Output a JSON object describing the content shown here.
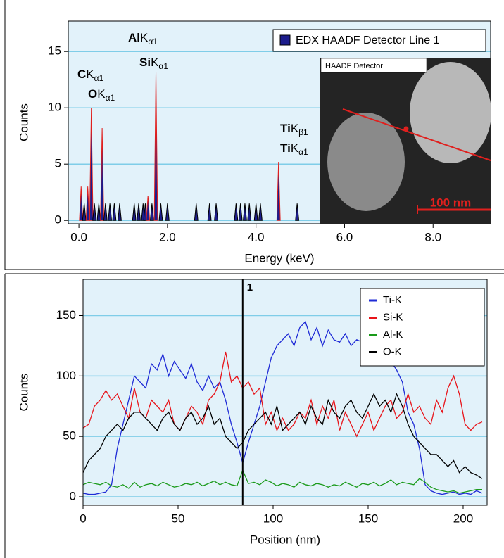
{
  "chart_data": [
    {
      "type": "spectrum",
      "x_label": "Energy (keV)",
      "y_label": "Counts",
      "xlim": [
        -0.24,
        9.3
      ],
      "ylim": [
        -0.3,
        17.7
      ],
      "xticks": [
        {
          "value": 0,
          "label": "0.0"
        },
        {
          "value": 2,
          "label": "2.0"
        },
        {
          "value": 4,
          "label": "4.0"
        },
        {
          "value": 6,
          "label": "6.0"
        },
        {
          "value": 8,
          "label": "8.0"
        }
      ],
      "yticks": [
        0,
        5,
        10,
        15
      ],
      "grid": true,
      "legend": "upper right",
      "x": [
        0.05,
        0.12,
        0.2,
        0.28,
        0.35,
        0.45,
        0.525,
        0.6,
        0.7,
        0.8,
        0.92,
        1.25,
        1.35,
        1.45,
        1.5,
        1.56,
        1.65,
        1.74,
        1.85,
        2.0,
        2.65,
        2.95,
        3.1,
        3.55,
        3.65,
        3.75,
        3.85,
        4.0,
        4.1,
        4.51,
        4.93
      ],
      "series": [
        {
          "name": "EDX HAADF Detector Line 1",
          "color": "#1c1c8c",
          "outline_color": "#e0201e",
          "values": [
            3,
            1.5,
            3,
            10,
            1.5,
            1.5,
            8.2,
            1.5,
            1.5,
            1.5,
            1.5,
            1.5,
            1.5,
            1.5,
            1.5,
            2.2,
            1.5,
            13.2,
            1.5,
            1.5,
            1.5,
            1.5,
            1.5,
            1.5,
            1.5,
            1.5,
            1.5,
            1.5,
            1.5,
            5.2,
            1.5
          ]
        }
      ],
      "annotations": [
        {
          "element": "C",
          "line": "K",
          "sub": "α1"
        },
        {
          "element": "O",
          "line": "K",
          "sub": "α1"
        },
        {
          "element": "Al",
          "line": "K",
          "sub": "α1"
        },
        {
          "element": "Si",
          "line": "K",
          "sub": "α1"
        },
        {
          "element": "Ti",
          "line": "K",
          "sub": "β1"
        },
        {
          "element": "Ti",
          "line": "K",
          "sub": "α1"
        }
      ],
      "inset": {
        "label": "HAADF Detector",
        "scale_bar": "100 nm"
      }
    },
    {
      "type": "line",
      "x_label": "Position (nm)",
      "y_label": "Counts",
      "xlim": [
        0,
        212.6
      ],
      "ylim": [
        -7,
        180
      ],
      "xticks": [
        0,
        50,
        100,
        150,
        200
      ],
      "yticks": [
        0,
        50,
        100,
        150
      ],
      "grid": true,
      "legend": "upper right",
      "cursor": {
        "value": 84,
        "label": "1"
      },
      "x": [
        0,
        3,
        6,
        9,
        12,
        15,
        18,
        21,
        24,
        27,
        30,
        33,
        36,
        39,
        42,
        45,
        48,
        51,
        54,
        57,
        60,
        63,
        66,
        69,
        72,
        75,
        78,
        81,
        84,
        87,
        90,
        93,
        96,
        99,
        102,
        105,
        108,
        111,
        114,
        117,
        120,
        123,
        126,
        129,
        132,
        135,
        138,
        141,
        144,
        147,
        150,
        153,
        156,
        159,
        162,
        165,
        168,
        171,
        174,
        177,
        180,
        183,
        186,
        189,
        192,
        195,
        198,
        201,
        204,
        207,
        210
      ],
      "series": [
        {
          "name": "Ti-K",
          "color": "#1f2bd6",
          "values": [
            3,
            2,
            2,
            3,
            4,
            10,
            40,
            60,
            80,
            100,
            95,
            90,
            110,
            105,
            118,
            100,
            112,
            105,
            98,
            110,
            95,
            88,
            100,
            90,
            95,
            80,
            60,
            45,
            28,
            45,
            60,
            75,
            95,
            115,
            125,
            130,
            135,
            125,
            140,
            145,
            130,
            140,
            125,
            138,
            130,
            128,
            135,
            125,
            130,
            128,
            125,
            122,
            115,
            110,
            112,
            105,
            95,
            70,
            60,
            40,
            10,
            5,
            3,
            2,
            3,
            4,
            2,
            3,
            2,
            5,
            3
          ]
        },
        {
          "name": "Si-K",
          "color": "#e8141a",
          "values": [
            57,
            60,
            75,
            80,
            88,
            80,
            85,
            75,
            65,
            90,
            70,
            65,
            80,
            75,
            70,
            80,
            60,
            55,
            65,
            75,
            70,
            60,
            80,
            85,
            95,
            120,
            95,
            100,
            90,
            95,
            85,
            90,
            60,
            70,
            55,
            65,
            55,
            60,
            70,
            65,
            80,
            60,
            75,
            65,
            80,
            55,
            70,
            60,
            50,
            60,
            70,
            55,
            65,
            75,
            80,
            65,
            70,
            85,
            70,
            75,
            65,
            60,
            80,
            70,
            90,
            100,
            85,
            60,
            55,
            60,
            62
          ]
        },
        {
          "name": "Al-K",
          "color": "#1a9a1a",
          "values": [
            10,
            12,
            11,
            10,
            12,
            9,
            8,
            10,
            7,
            12,
            8,
            10,
            11,
            9,
            12,
            10,
            8,
            9,
            11,
            10,
            12,
            9,
            11,
            13,
            10,
            12,
            10,
            9,
            22,
            11,
            12,
            10,
            14,
            12,
            9,
            11,
            10,
            8,
            12,
            10,
            9,
            11,
            10,
            8,
            10,
            9,
            12,
            10,
            8,
            11,
            10,
            12,
            9,
            11,
            14,
            10,
            12,
            11,
            10,
            15,
            12,
            8,
            6,
            5,
            4,
            5,
            3,
            4,
            5,
            6,
            6
          ]
        },
        {
          "name": "O-K",
          "color": "#000000",
          "values": [
            20,
            30,
            35,
            40,
            50,
            55,
            60,
            55,
            65,
            70,
            70,
            65,
            60,
            55,
            65,
            70,
            60,
            55,
            65,
            70,
            60,
            65,
            75,
            60,
            65,
            50,
            45,
            40,
            45,
            55,
            60,
            65,
            70,
            60,
            75,
            55,
            60,
            65,
            70,
            60,
            75,
            65,
            60,
            80,
            70,
            65,
            75,
            80,
            70,
            65,
            75,
            85,
            75,
            80,
            70,
            85,
            75,
            60,
            50,
            45,
            40,
            35,
            35,
            30,
            25,
            30,
            20,
            25,
            20,
            18,
            15
          ]
        }
      ]
    }
  ]
}
